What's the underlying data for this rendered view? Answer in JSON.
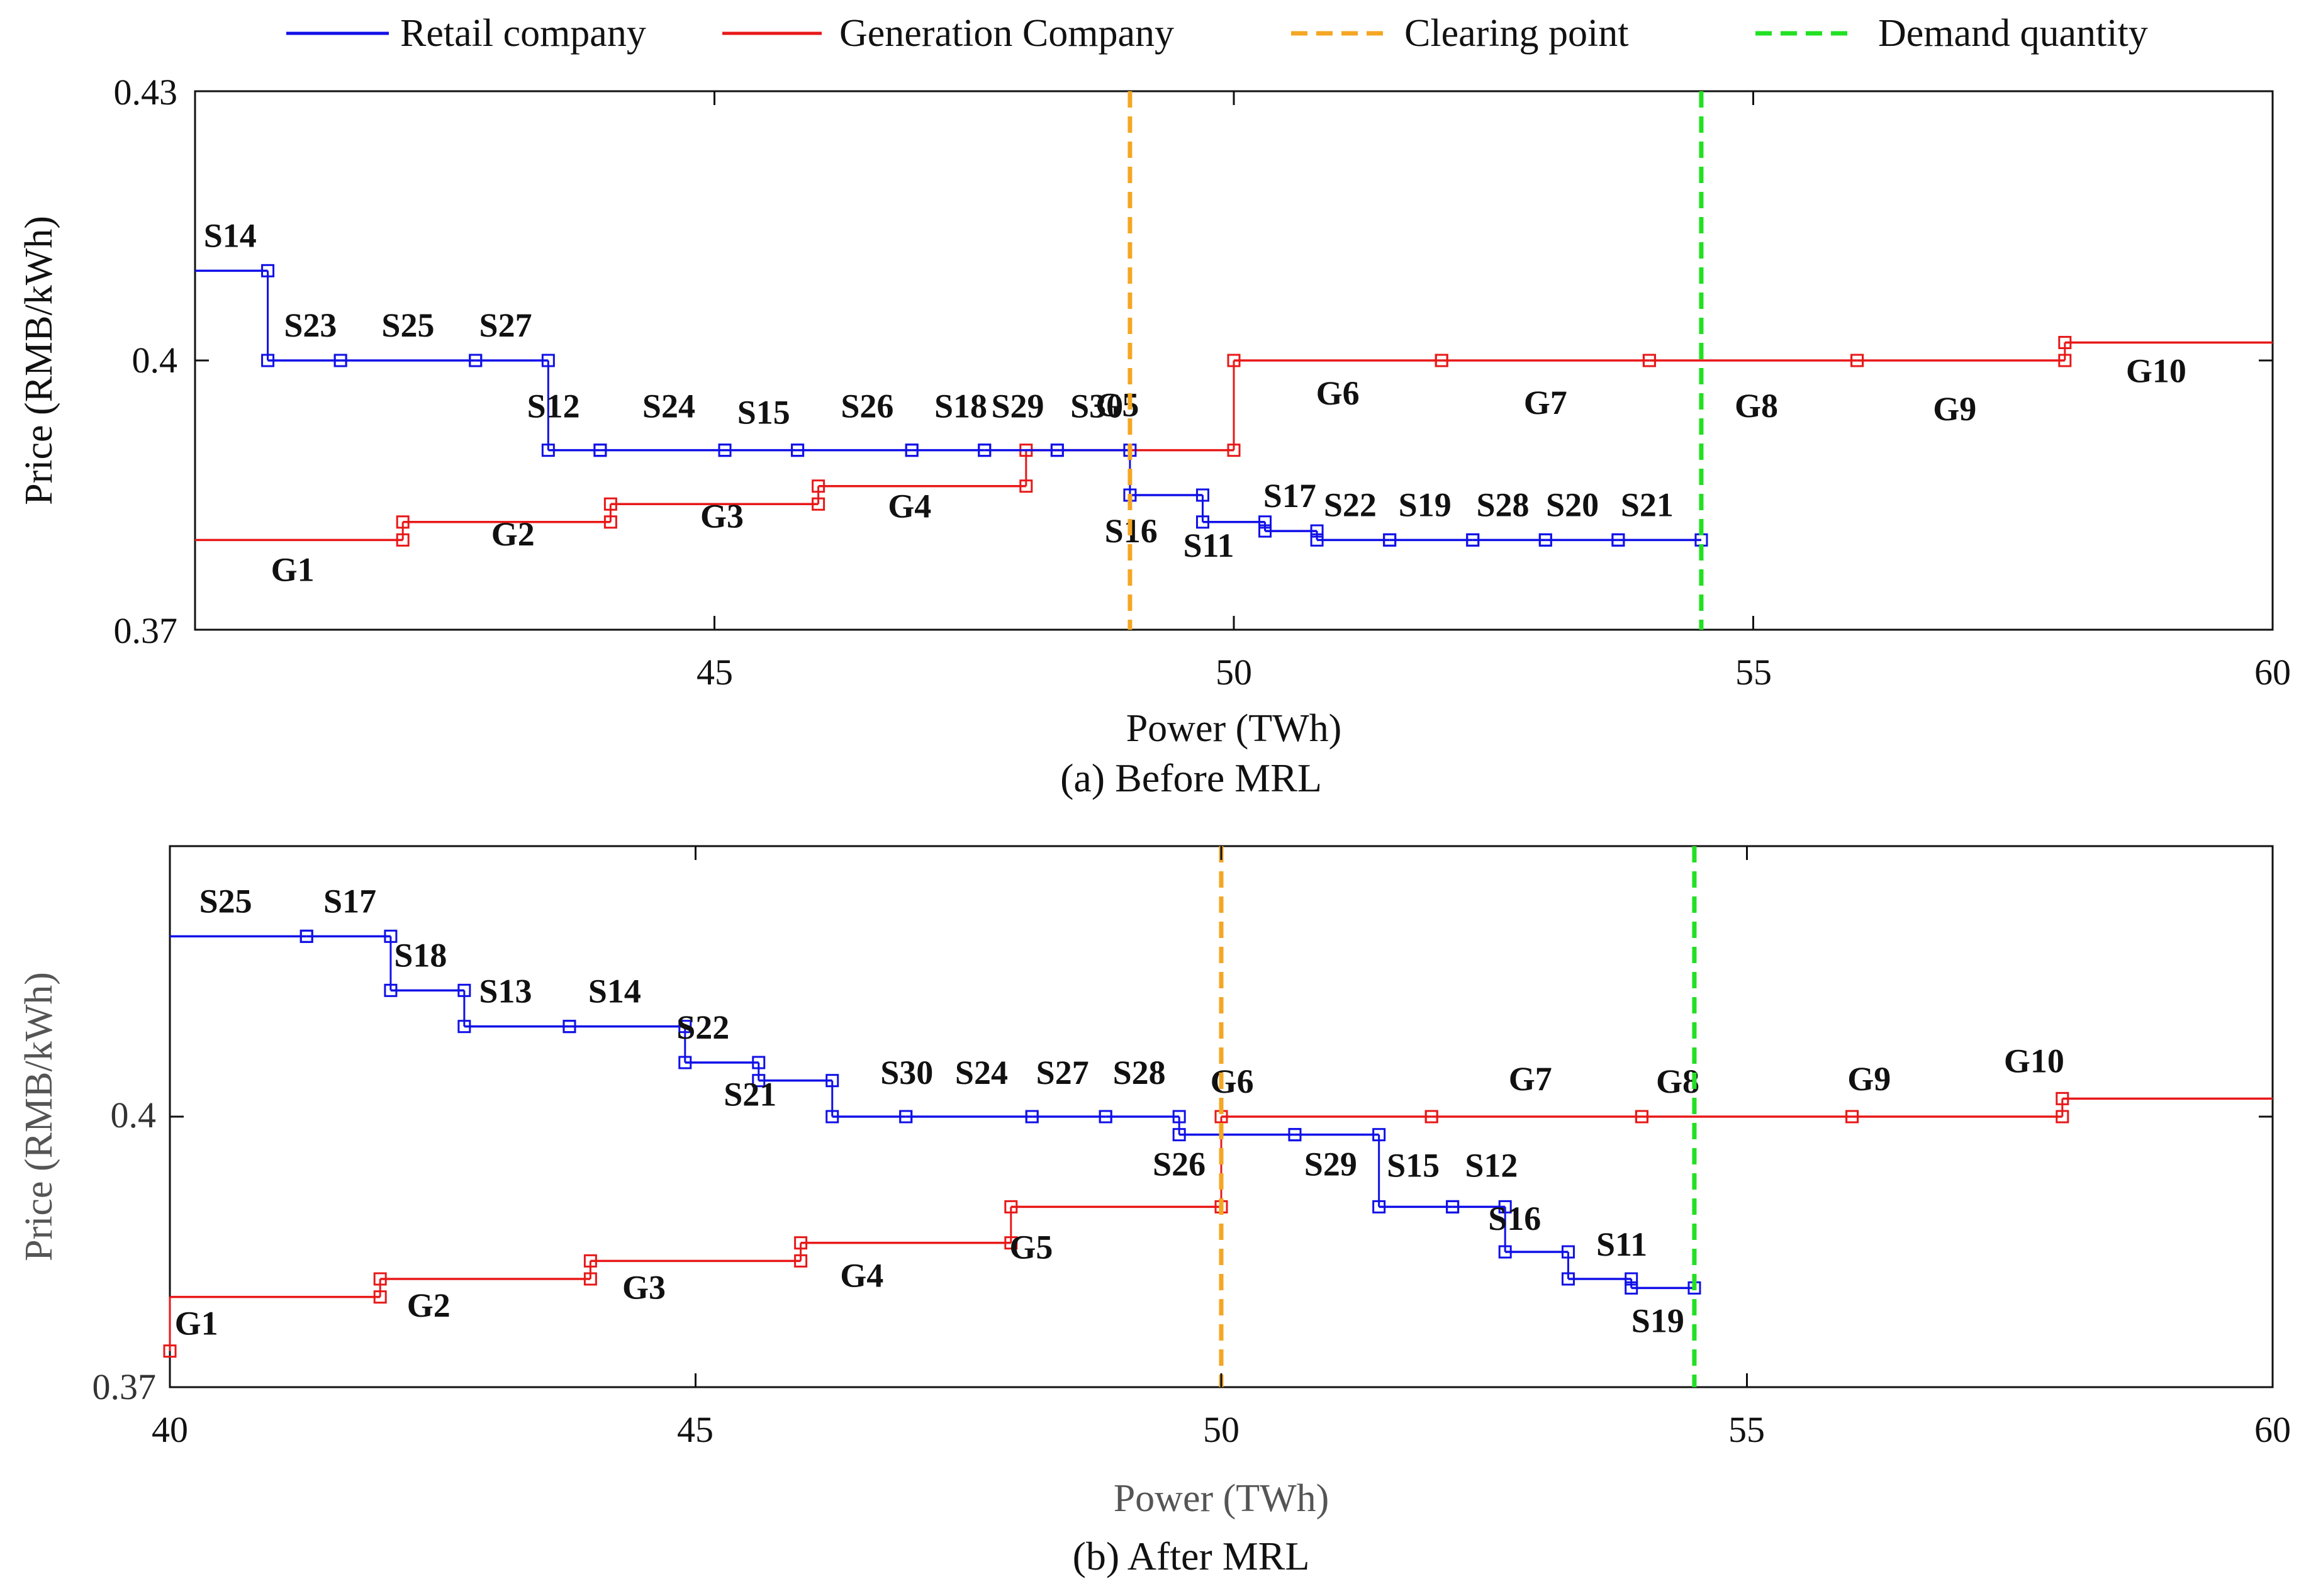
{
  "legend": {
    "retail": "Retail company",
    "generation": "Generation Company",
    "clearing": "Clearing point",
    "demand": "Demand quantity"
  },
  "colors": {
    "retail": "#1010e8",
    "generation": "#e81818",
    "clearing": "#f5a623",
    "demand": "#22e022",
    "axis": "#111111"
  },
  "chart_data": [
    {
      "type": "line",
      "panel": "a",
      "caption": "(a) Before MRL",
      "xlabel": "Power (TWh)",
      "ylabel": "Price (RMB/kWh)",
      "xlim": [
        40.0,
        60.0
      ],
      "ylim": [
        0.37,
        0.43
      ],
      "xticks": [
        45,
        50,
        55,
        60
      ],
      "xtick_labels": [
        "45",
        "50",
        "55",
        "60"
      ],
      "yticks": [
        0.37,
        0.4,
        0.43
      ],
      "ytick_labels": [
        "0.37",
        "0.4",
        "0.43"
      ],
      "clearing_x": 49.0,
      "demand_x": 54.5,
      "retail_segments": [
        {
          "label": "S14",
          "x0": 40.0,
          "x1": 40.7,
          "y": 0.41
        },
        {
          "label": "S23",
          "x0": 40.7,
          "x1": 41.4,
          "y": 0.4
        },
        {
          "label": "S25",
          "x0": 41.4,
          "x1": 42.7,
          "y": 0.4
        },
        {
          "label": "S27",
          "x0": 42.7,
          "x1": 43.4,
          "y": 0.4
        },
        {
          "label": "S12",
          "x0": 43.4,
          "x1": 43.9,
          "y": 0.39
        },
        {
          "label": "S24",
          "x0": 43.9,
          "x1": 45.1,
          "y": 0.39
        },
        {
          "label": "S15",
          "x0": 45.1,
          "x1": 45.8,
          "y": 0.39
        },
        {
          "label": "S26",
          "x0": 45.8,
          "x1": 46.9,
          "y": 0.39
        },
        {
          "label": "S18",
          "x0": 46.9,
          "x1": 47.6,
          "y": 0.39
        },
        {
          "label": "S29",
          "x0": 47.6,
          "x1": 48.3,
          "y": 0.39
        },
        {
          "label": "S30",
          "x0": 48.3,
          "x1": 49.0,
          "y": 0.39
        },
        {
          "label": "S16",
          "x0": 49.0,
          "x1": 49.7,
          "y": 0.385
        },
        {
          "label": "S11",
          "x0": 49.7,
          "x1": 50.3,
          "y": 0.382
        },
        {
          "label": "S17",
          "x0": 50.3,
          "x1": 50.8,
          "y": 0.381
        },
        {
          "label": "S22",
          "x0": 50.8,
          "x1": 51.5,
          "y": 0.38
        },
        {
          "label": "S19",
          "x0": 51.5,
          "x1": 52.3,
          "y": 0.38
        },
        {
          "label": "S28",
          "x0": 52.3,
          "x1": 53.0,
          "y": 0.38
        },
        {
          "label": "S20",
          "x0": 53.0,
          "x1": 53.7,
          "y": 0.38
        },
        {
          "label": "S21",
          "x0": 53.7,
          "x1": 54.5,
          "y": 0.38
        }
      ],
      "generation_segments": [
        {
          "label": "G1",
          "x0": 40.0,
          "x1": 42.0,
          "y": 0.38
        },
        {
          "label": "G2",
          "x0": 42.0,
          "x1": 44.0,
          "y": 0.382
        },
        {
          "label": "G3",
          "x0": 44.0,
          "x1": 46.0,
          "y": 0.384
        },
        {
          "label": "G4",
          "x0": 46.0,
          "x1": 48.0,
          "y": 0.386
        },
        {
          "label": "G5",
          "x0": 48.0,
          "x1": 50.0,
          "y": 0.39
        },
        {
          "label": "G6",
          "x0": 50.0,
          "x1": 52.0,
          "y": 0.4
        },
        {
          "label": "G7",
          "x0": 52.0,
          "x1": 54.0,
          "y": 0.4
        },
        {
          "label": "G8",
          "x0": 54.0,
          "x1": 56.0,
          "y": 0.4
        },
        {
          "label": "G9",
          "x0": 56.0,
          "x1": 58.0,
          "y": 0.4
        },
        {
          "label": "G10",
          "x0": 58.0,
          "x1": 60.0,
          "y": 0.402
        }
      ]
    },
    {
      "type": "line",
      "panel": "b",
      "caption": "(b) After MRL",
      "xlabel": "Power (TWh)",
      "ylabel": "Price (RMB/kWh)",
      "xlim": [
        40.0,
        60.0
      ],
      "ylim": [
        0.37,
        0.43
      ],
      "xticks": [
        40,
        45,
        50,
        55,
        60
      ],
      "xtick_labels": [
        "40",
        "45",
        "50",
        "55",
        "60"
      ],
      "yticks": [
        0.37,
        0.4
      ],
      "ytick_labels": [
        "0.37",
        "0.4"
      ],
      "clearing_x": 50.0,
      "demand_x": 54.5,
      "retail_segments": [
        {
          "label": "S25",
          "x0": 40.0,
          "x1": 41.3,
          "y": 0.42
        },
        {
          "label": "S17",
          "x0": 41.3,
          "x1": 42.1,
          "y": 0.42
        },
        {
          "label": "S18",
          "x0": 42.1,
          "x1": 42.8,
          "y": 0.414
        },
        {
          "label": "S13",
          "x0": 42.8,
          "x1": 43.8,
          "y": 0.41
        },
        {
          "label": "S14",
          "x0": 43.8,
          "x1": 44.9,
          "y": 0.41
        },
        {
          "label": "S22",
          "x0": 44.9,
          "x1": 45.6,
          "y": 0.406
        },
        {
          "label": "S21",
          "x0": 45.6,
          "x1": 46.3,
          "y": 0.404
        },
        {
          "label": "S30",
          "x0": 46.3,
          "x1": 47.0,
          "y": 0.4
        },
        {
          "label": "S24",
          "x0": 47.0,
          "x1": 48.2,
          "y": 0.4
        },
        {
          "label": "S27",
          "x0": 48.2,
          "x1": 48.9,
          "y": 0.4
        },
        {
          "label": "S28",
          "x0": 48.9,
          "x1": 49.6,
          "y": 0.4
        },
        {
          "label": "S26",
          "x0": 49.6,
          "x1": 50.7,
          "y": 0.398
        },
        {
          "label": "S29",
          "x0": 50.7,
          "x1": 51.5,
          "y": 0.398
        },
        {
          "label": "S15",
          "x0": 51.5,
          "x1": 52.2,
          "y": 0.39
        },
        {
          "label": "S12",
          "x0": 52.2,
          "x1": 52.7,
          "y": 0.39
        },
        {
          "label": "S16",
          "x0": 52.7,
          "x1": 53.3,
          "y": 0.385
        },
        {
          "label": "S11",
          "x0": 53.3,
          "x1": 53.9,
          "y": 0.382
        },
        {
          "label": "S19",
          "x0": 53.9,
          "x1": 54.5,
          "y": 0.381
        }
      ],
      "generation_segments": [
        {
          "label": "G1",
          "x0": 40.0,
          "x1": 42.0,
          "y": 0.38,
          "from_y": 0.374
        },
        {
          "label": "G2",
          "x0": 42.0,
          "x1": 44.0,
          "y": 0.382
        },
        {
          "label": "G3",
          "x0": 44.0,
          "x1": 46.0,
          "y": 0.384
        },
        {
          "label": "G4",
          "x0": 46.0,
          "x1": 48.0,
          "y": 0.386
        },
        {
          "label": "G5",
          "x0": 48.0,
          "x1": 50.0,
          "y": 0.39
        },
        {
          "label": "G6",
          "x0": 50.0,
          "x1": 52.0,
          "y": 0.4
        },
        {
          "label": "G7",
          "x0": 52.0,
          "x1": 54.0,
          "y": 0.4
        },
        {
          "label": "G8",
          "x0": 54.0,
          "x1": 56.0,
          "y": 0.4
        },
        {
          "label": "G9",
          "x0": 56.0,
          "x1": 58.0,
          "y": 0.4
        },
        {
          "label": "G10",
          "x0": 58.0,
          "x1": 60.0,
          "y": 0.402
        }
      ]
    }
  ]
}
